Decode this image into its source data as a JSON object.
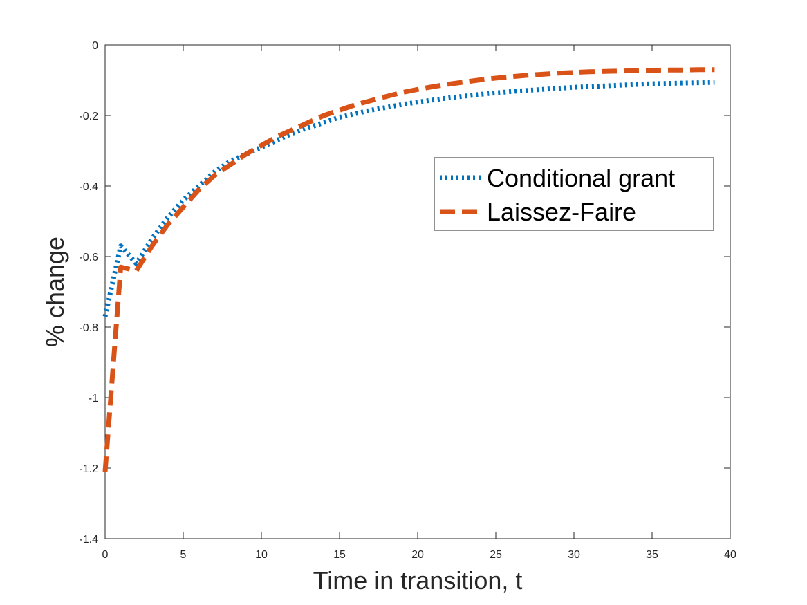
{
  "chart_data": {
    "type": "line",
    "title": "",
    "xlabel": "Time in transition, t",
    "ylabel": "% change",
    "xlim": [
      0,
      40
    ],
    "ylim": [
      -1.4,
      0
    ],
    "xticks": [
      0,
      5,
      10,
      15,
      20,
      25,
      30,
      35,
      40
    ],
    "xtick_labels": [
      "0",
      "5",
      "10",
      "15",
      "20",
      "25",
      "30",
      "35",
      "40"
    ],
    "yticks": [
      0,
      -0.2,
      -0.4,
      -0.6,
      -0.8,
      -1,
      -1.2,
      -1.4
    ],
    "ytick_labels": [
      "0",
      "-0.2",
      "-0.4",
      "-0.6",
      "-0.8",
      "-1",
      "-1.2",
      "-1.4"
    ],
    "grid": false,
    "legend_position": "right, upper-middle",
    "x": [
      0,
      1,
      2,
      3,
      4,
      5,
      6,
      7,
      8,
      9,
      10,
      11,
      12,
      13,
      14,
      15,
      16,
      17,
      18,
      19,
      20,
      21,
      22,
      23,
      24,
      25,
      26,
      27,
      28,
      29,
      30,
      31,
      32,
      33,
      34,
      35,
      36,
      37,
      38,
      39
    ],
    "series": [
      {
        "name": "Conditional grant",
        "color": "#0072BD",
        "style": "dotted",
        "values": [
          -0.77,
          -0.57,
          -0.62,
          -0.55,
          -0.49,
          -0.44,
          -0.4,
          -0.36,
          -0.33,
          -0.31,
          -0.29,
          -0.27,
          -0.25,
          -0.235,
          -0.22,
          -0.205,
          -0.195,
          -0.185,
          -0.177,
          -0.169,
          -0.162,
          -0.156,
          -0.15,
          -0.145,
          -0.14,
          -0.136,
          -0.132,
          -0.129,
          -0.126,
          -0.123,
          -0.12,
          -0.118,
          -0.116,
          -0.114,
          -0.112,
          -0.11,
          -0.109,
          -0.108,
          -0.107,
          -0.106
        ]
      },
      {
        "name": "Laissez-Faire",
        "color": "#D95319",
        "style": "dashed",
        "values": [
          -1.21,
          -0.63,
          -0.64,
          -0.57,
          -0.51,
          -0.46,
          -0.41,
          -0.37,
          -0.34,
          -0.31,
          -0.285,
          -0.26,
          -0.24,
          -0.22,
          -0.2,
          -0.185,
          -0.17,
          -0.158,
          -0.146,
          -0.135,
          -0.126,
          -0.118,
          -0.111,
          -0.105,
          -0.099,
          -0.094,
          -0.09,
          -0.086,
          -0.083,
          -0.08,
          -0.078,
          -0.076,
          -0.075,
          -0.074,
          -0.073,
          -0.072,
          -0.071,
          -0.071,
          -0.07,
          -0.07
        ]
      }
    ]
  }
}
